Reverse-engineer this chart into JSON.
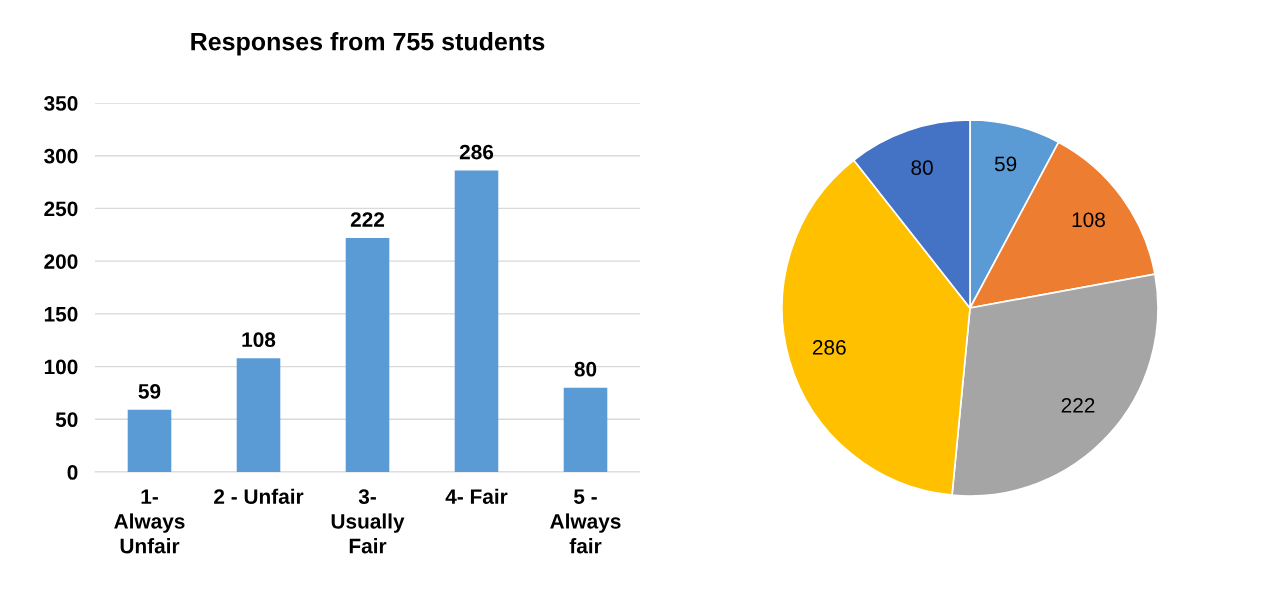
{
  "chart_data": [
    {
      "type": "bar",
      "title": "Responses from 755 students",
      "categories": [
        "1-\nAlways\nUnfair",
        "2 - Unfair",
        "3-\nUsually\nFair",
        "4- Fair",
        "5 -\nAlways\nfair"
      ],
      "values": [
        59,
        108,
        222,
        286,
        80
      ],
      "color": "#5b9bd5",
      "ylim": [
        0,
        350
      ],
      "yticks": [
        0,
        50,
        100,
        150,
        200,
        250,
        300,
        350
      ],
      "grid": "y",
      "data_labels": true,
      "legend": false
    },
    {
      "type": "pie",
      "categories": [
        null,
        null,
        null,
        null,
        null
      ],
      "values": [
        59,
        108,
        222,
        286,
        80
      ],
      "colors": [
        "#5b9bd5",
        "#ed7d31",
        "#a5a5a5",
        "#ffc000",
        "#4472c4"
      ],
      "data_labels": true,
      "legend": false
    }
  ]
}
